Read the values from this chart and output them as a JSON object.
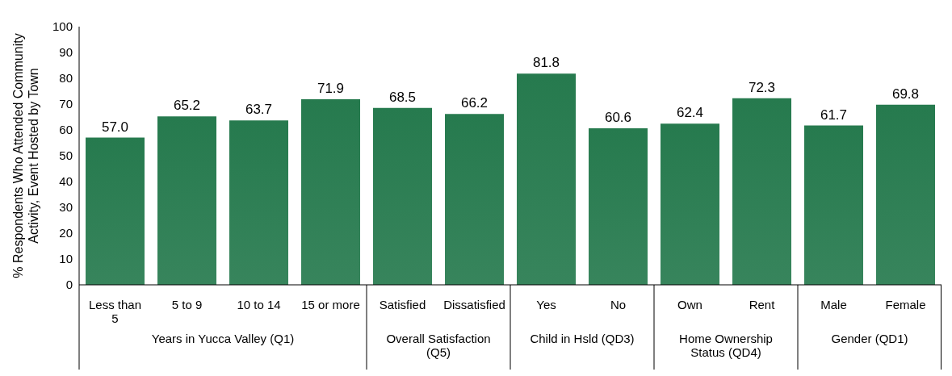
{
  "chart_data": {
    "type": "bar",
    "ylabel": "% Respondents Who Attended Community Activity, Event Hosted by Town",
    "categories": [
      "Less than 5",
      "5 to 9",
      "10 to 14",
      "15 or more",
      "Satisfied",
      "Dissatisfied",
      "Yes",
      "No",
      "Own",
      "Rent",
      "Male",
      "Female"
    ],
    "values": [
      57.0,
      65.2,
      63.7,
      71.9,
      68.5,
      66.2,
      81.8,
      60.6,
      62.4,
      72.3,
      61.7,
      69.8
    ],
    "value_labels": [
      "57.0",
      "65.2",
      "63.7",
      "71.9",
      "68.5",
      "66.2",
      "81.8",
      "60.6",
      "62.4",
      "72.3",
      "61.7",
      "69.8"
    ],
    "color": "#267a4e",
    "ylim": [
      0,
      100
    ],
    "yticks": [
      0,
      10,
      20,
      30,
      40,
      50,
      60,
      70,
      80,
      90,
      100
    ],
    "grid": false,
    "legend": false,
    "annotations": [
      "Years in Yucca Valley (Q1)",
      "Overall Satisfaction (Q5)",
      "Child in Hsld (QD3)",
      "Home Ownership Status (QD4)",
      "Gender (QD1)"
    ]
  }
}
